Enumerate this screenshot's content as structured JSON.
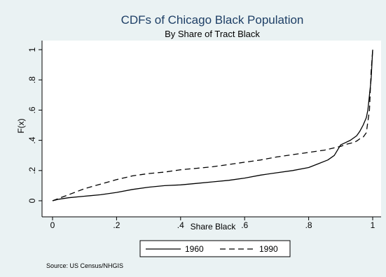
{
  "chart_data": {
    "type": "line",
    "title": "CDFs of Chicago Black Population",
    "subtitle": "By Share of Tract Black",
    "xlabel": "Share Black",
    "ylabel": "F(x)",
    "xlim": [
      0,
      1
    ],
    "ylim": [
      0,
      1
    ],
    "xticks": [
      0,
      0.2,
      0.4,
      0.6,
      0.8,
      1
    ],
    "xtick_labels": [
      "0",
      ".2",
      ".4",
      ".6",
      ".8",
      "1"
    ],
    "yticks": [
      0,
      0.2,
      0.4,
      0.6,
      0.8,
      1
    ],
    "ytick_labels": [
      "0",
      ".2",
      ".4",
      ".6",
      ".8",
      "1"
    ],
    "grid": false,
    "legend_position": "bottom",
    "note": "Source:  US Census/NHGIS",
    "series": [
      {
        "name": "1960",
        "style": "solid",
        "color": "#000000",
        "x": [
          0,
          0.02,
          0.05,
          0.1,
          0.15,
          0.2,
          0.25,
          0.3,
          0.35,
          0.4,
          0.45,
          0.5,
          0.55,
          0.6,
          0.65,
          0.7,
          0.75,
          0.8,
          0.83,
          0.86,
          0.88,
          0.9,
          0.91,
          0.93,
          0.95,
          0.96,
          0.97,
          0.98,
          0.985,
          0.99,
          0.995,
          1.0
        ],
        "y": [
          0,
          0.01,
          0.02,
          0.03,
          0.04,
          0.055,
          0.075,
          0.09,
          0.1,
          0.105,
          0.115,
          0.125,
          0.135,
          0.15,
          0.17,
          0.185,
          0.2,
          0.22,
          0.245,
          0.27,
          0.3,
          0.37,
          0.38,
          0.4,
          0.43,
          0.46,
          0.5,
          0.55,
          0.6,
          0.7,
          0.8,
          1.0
        ]
      },
      {
        "name": "1990",
        "style": "dashed",
        "color": "#000000",
        "x": [
          0,
          0.05,
          0.1,
          0.15,
          0.2,
          0.25,
          0.3,
          0.35,
          0.4,
          0.45,
          0.5,
          0.55,
          0.6,
          0.65,
          0.7,
          0.75,
          0.8,
          0.85,
          0.9,
          0.92,
          0.94,
          0.95,
          0.96,
          0.97,
          0.98,
          0.99,
          0.995,
          1.0
        ],
        "y": [
          0,
          0.04,
          0.08,
          0.11,
          0.14,
          0.165,
          0.18,
          0.19,
          0.205,
          0.215,
          0.225,
          0.24,
          0.255,
          0.27,
          0.29,
          0.305,
          0.32,
          0.335,
          0.36,
          0.375,
          0.385,
          0.395,
          0.41,
          0.42,
          0.45,
          0.6,
          0.85,
          1.0
        ]
      }
    ]
  }
}
